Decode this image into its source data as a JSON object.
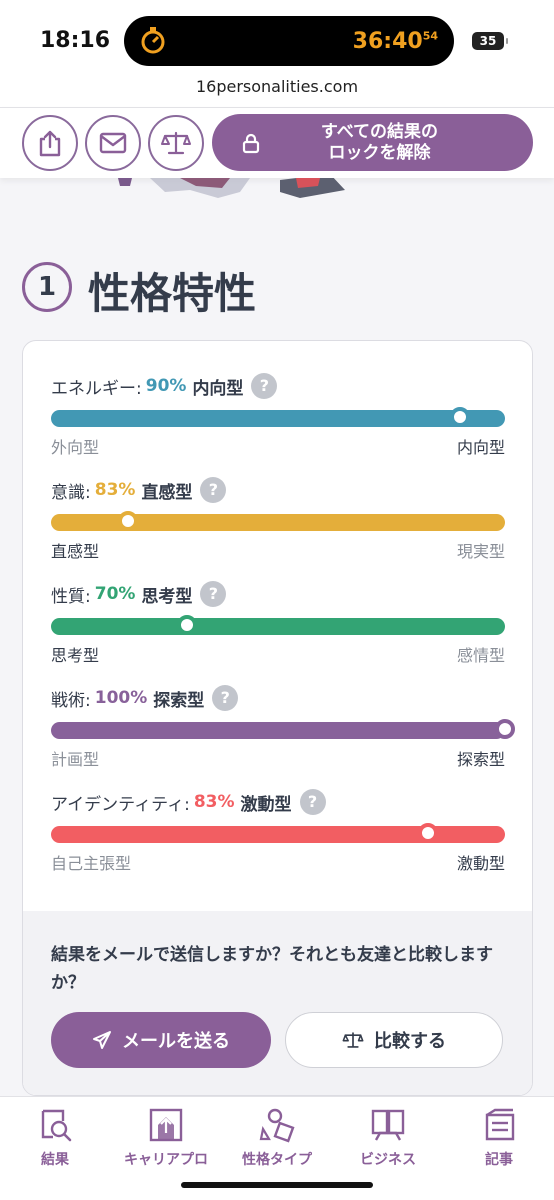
{
  "status_bar": {
    "time": "18:16",
    "timer": "36:40",
    "timer_sub": "54",
    "battery": "35"
  },
  "browser": {
    "url": "16personalities.com"
  },
  "action_bar": {
    "share_icon": "share-icon",
    "mail_icon": "mail-icon",
    "compare_icon": "scale-icon",
    "unlock_label": "すべての結果の\nロックを解除"
  },
  "section": {
    "number": "1",
    "title": "性格特性"
  },
  "traits": [
    {
      "label": "エネルギー:",
      "percent": "90%",
      "type": "内向型",
      "left": "外向型",
      "right": "内向型",
      "value": 0.9,
      "active_side": "right",
      "color": "#4298b4"
    },
    {
      "label": "意識:",
      "percent": "83%",
      "type": "直感型",
      "left": "直感型",
      "right": "現実型",
      "value": 0.83,
      "active_side": "left",
      "color": "#e4ae3a"
    },
    {
      "label": "性質:",
      "percent": "70%",
      "type": "思考型",
      "left": "思考型",
      "right": "感情型",
      "value": 0.7,
      "active_side": "left",
      "color": "#33a474"
    },
    {
      "label": "戦術:",
      "percent": "100%",
      "type": "探索型",
      "left": "計画型",
      "right": "探索型",
      "value": 1.0,
      "active_side": "right",
      "color": "#88619a"
    },
    {
      "label": "アイデンティティ:",
      "percent": "83%",
      "type": "激動型",
      "left": "自己主張型",
      "right": "激動型",
      "value": 0.83,
      "active_side": "right",
      "color": "#f25e62"
    }
  ],
  "help_glyph": "?",
  "cta": {
    "text": "結果をメールで送信しますか？それとも友達と比較しますか？",
    "mail_button": "メールを送る",
    "compare_button": "比較する"
  },
  "bottom_nav": [
    {
      "label": "結果",
      "icon": "results-icon"
    },
    {
      "label": "キャリアプロ",
      "icon": "career-icon"
    },
    {
      "label": "性格タイプ",
      "icon": "types-icon"
    },
    {
      "label": "ビジネス",
      "icon": "business-icon"
    },
    {
      "label": "記事",
      "icon": "articles-icon"
    }
  ]
}
